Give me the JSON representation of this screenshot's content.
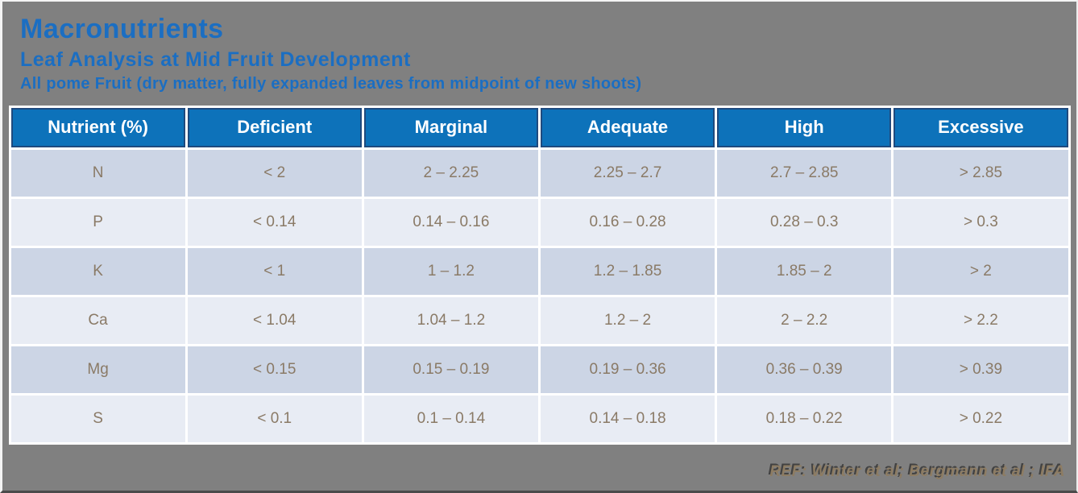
{
  "slide": {
    "title": "Macronutrients",
    "subtitle": "Leaf Analysis at Mid Fruit Development",
    "subtitle2": "All pome Fruit (dry matter, fully expanded leaves from midpoint of new shoots)",
    "reference": "REF: Winter et al; Bergmann et al ; IFA"
  },
  "table": {
    "columns": [
      "Nutrient (%)",
      "Deficient",
      "Marginal",
      "Adequate",
      "High",
      "Excessive"
    ],
    "rows": [
      [
        "N",
        "< 2",
        "2 – 2.25",
        "2.25 – 2.7",
        "2.7 – 2.85",
        "> 2.85"
      ],
      [
        "P",
        "< 0.14",
        "0.14 – 0.16",
        "0.16 – 0.28",
        "0.28 – 0.3",
        "> 0.3"
      ],
      [
        "K",
        "< 1",
        "1 – 1.2",
        "1.2 – 1.85",
        "1.85 – 2",
        "> 2"
      ],
      [
        "Ca",
        "< 1.04",
        "1.04 – 1.2",
        "1.2 – 2",
        "2 – 2.2",
        "> 2.2"
      ],
      [
        "Mg",
        "< 0.15",
        "0.15 – 0.19",
        "0.19 – 0.36",
        "0.36 – 0.39",
        "> 0.39"
      ],
      [
        "S",
        "< 0.1",
        "0.1 – 0.14",
        "0.14 – 0.18",
        "0.18 – 0.22",
        "> 0.22"
      ]
    ]
  },
  "colors": {
    "background": "#808080",
    "title_blue": "#1b6ec2",
    "header_bg": "#0d72ba",
    "header_border": "#1f4a7e",
    "row_odd_bg": "#ccd5e5",
    "row_even_bg": "#e8ecf4",
    "cell_text": "#8a7a66",
    "reference_text": "#8d7c63"
  }
}
